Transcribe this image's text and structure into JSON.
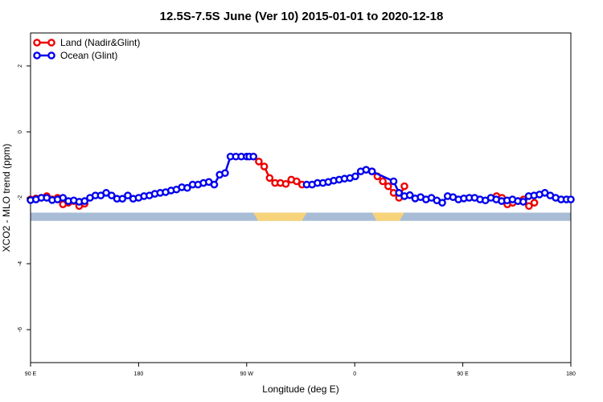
{
  "chart_data": {
    "type": "line",
    "title": "12.5S-7.5S June (Ver 10)   2015-01-01 to 2020-12-18",
    "xlabel": "Longitude (deg E)",
    "ylabel": "XCO2 - MLO trend (ppm)",
    "xlim": [
      90,
      450
    ],
    "ylim": [
      -7,
      3
    ],
    "x_ticks": [
      {
        "value": 90,
        "label": "90 E"
      },
      {
        "value": 162,
        "label": "180"
      },
      {
        "value": 234,
        "label": "90 W"
      },
      {
        "value": 306,
        "label": "0"
      },
      {
        "value": 378,
        "label": "90 E"
      },
      {
        "value": 450,
        "label": "180"
      }
    ],
    "y_ticks": [
      {
        "value": 2,
        "label": "2"
      },
      {
        "value": 0,
        "label": "0"
      },
      {
        "value": -2,
        "label": "-2"
      },
      {
        "value": -4,
        "label": "-4"
      },
      {
        "value": -6,
        "label": "-6"
      }
    ],
    "grid": false,
    "legend_position": "top-left",
    "land_band": {
      "y_range": [
        -2.45,
        -2.7
      ],
      "ocean_color": "#a9bcd6",
      "land_color": "#f7d37a",
      "land_ranges": [
        [
          238.5,
          274
        ],
        [
          317.5,
          339
        ]
      ]
    },
    "series": [
      {
        "name": "Land (Nadir&Glint)",
        "color": "#ee0000",
        "x": [
          90,
          93.6,
          97.2,
          100.8,
          104.4,
          108,
          111.6,
          115.2,
          118.8,
          122.4,
          126,
          238.5,
          242.1,
          245.7,
          249.3,
          252.9,
          256.5,
          260.1,
          263.7,
          267.3,
          270.9,
          317.5,
          321.1,
          324.7,
          328.3,
          331.9,
          335.5,
          339.1,
          400.5,
          404.1,
          407.7,
          411.3,
          414.9,
          418.5,
          422.1,
          425.7
        ],
        "y": [
          -2.05,
          -2.02,
          -2.0,
          -1.95,
          -2.05,
          -2.0,
          -2.2,
          -2.15,
          -2.1,
          -2.25,
          -2.18,
          -0.75,
          -0.9,
          -1.05,
          -1.4,
          -1.55,
          -1.55,
          -1.58,
          -1.45,
          -1.5,
          -1.6,
          -1.2,
          -1.35,
          -1.5,
          -1.65,
          -1.85,
          -2.0,
          -1.65,
          -1.95,
          -2.0,
          -2.2,
          -2.15,
          -2.1,
          -2.05,
          -2.25,
          -2.15
        ]
      },
      {
        "name": "Ocean (Glint)",
        "color": "#0000ee",
        "x": [
          90,
          93.6,
          97.2,
          100.8,
          104.4,
          108,
          111.6,
          115.2,
          118.8,
          122.4,
          126,
          129.6,
          133.2,
          136.8,
          140.4,
          144,
          147.6,
          151.2,
          154.8,
          158.4,
          162,
          165.6,
          169.2,
          172.8,
          176.4,
          180,
          183.6,
          187.2,
          190.8,
          194.4,
          198,
          201.6,
          205.2,
          208.8,
          212.4,
          216,
          219.6,
          223.2,
          226.8,
          230.4,
          234,
          235.8,
          238.5
        ],
        "y": [
          -2.07,
          -2.05,
          -2.0,
          -2.0,
          -2.07,
          -2.05,
          -2.0,
          -2.1,
          -2.08,
          -2.12,
          -2.1,
          -2.0,
          -1.93,
          -1.93,
          -1.85,
          -1.93,
          -2.03,
          -2.03,
          -1.93,
          -2.03,
          -2.0,
          -1.95,
          -1.93,
          -1.88,
          -1.85,
          -1.83,
          -1.78,
          -1.75,
          -1.68,
          -1.7,
          -1.6,
          -1.6,
          -1.55,
          -1.52,
          -1.6,
          -1.3,
          -1.25,
          -0.75,
          -0.75,
          -0.75,
          -0.75,
          -0.75,
          -0.75
        ],
        "segment_2": {
          "x": [
            274,
            277.6,
            281.2,
            284.8,
            288.4,
            292,
            295.6,
            299.2,
            302.8,
            306.4,
            310,
            313.6,
            317.5,
            331.9,
            335.5,
            339.1,
            342.7,
            346.3,
            349.9,
            353.5,
            357.1,
            360.7,
            364.3,
            367.9,
            371.5,
            375.1,
            378.7,
            382.3,
            385.9,
            389.5,
            393.1,
            396.7,
            400.3,
            403.9,
            407.5,
            411.1,
            414.7,
            418.3,
            421.9,
            425.5,
            429.1,
            432.7,
            436.3,
            439.9,
            443.5,
            447.1,
            450
          ],
          "y": [
            -1.6,
            -1.6,
            -1.55,
            -1.55,
            -1.52,
            -1.48,
            -1.45,
            -1.42,
            -1.4,
            -1.35,
            -1.2,
            -1.15,
            -1.2,
            -1.5,
            -1.85,
            -1.95,
            -1.92,
            -2.02,
            -1.98,
            -2.05,
            -2.0,
            -2.08,
            -2.15,
            -1.95,
            -1.98,
            -2.05,
            -2.02,
            -2.0,
            -2.0,
            -2.05,
            -2.08,
            -2.0,
            -2.05,
            -2.1,
            -2.08,
            -2.05,
            -2.1,
            -2.12,
            -1.95,
            -1.93,
            -1.9,
            -1.85,
            -1.93,
            -2.0,
            -2.05,
            -2.05,
            -2.05
          ]
        }
      }
    ]
  }
}
